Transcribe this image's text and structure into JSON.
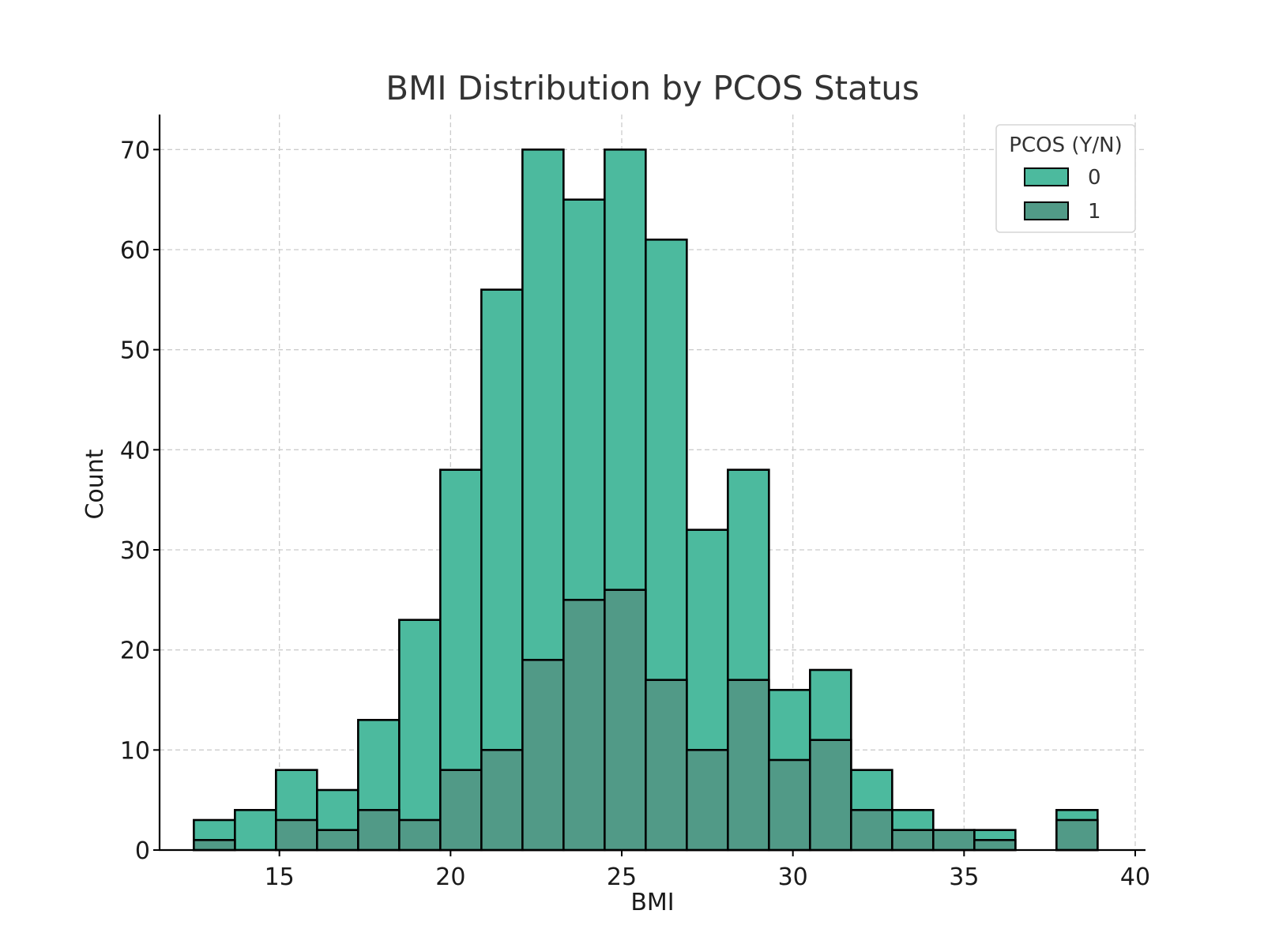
{
  "chart_data": {
    "type": "bar",
    "subtype": "overlaid-histogram",
    "title": "BMI Distribution by PCOS Status",
    "xlabel": "BMI",
    "ylabel": "Count",
    "xlim": [
      11.5,
      40.3
    ],
    "ylim": [
      0,
      73.5
    ],
    "xticks": [
      15,
      20,
      25,
      30,
      35,
      40
    ],
    "yticks": [
      0,
      10,
      20,
      30,
      40,
      50,
      60,
      70
    ],
    "grid": true,
    "bin_start": 12.5,
    "bin_width": 1.2,
    "legend": {
      "title": "PCOS (Y/N)",
      "placement": "top-right"
    },
    "series": [
      {
        "name": "0",
        "color": "#4cba9e",
        "values": [
          3,
          4,
          8,
          6,
          13,
          23,
          38,
          56,
          70,
          65,
          70,
          61,
          32,
          38,
          16,
          18,
          8,
          4,
          2,
          2,
          0,
          4
        ]
      },
      {
        "name": "1",
        "color": "#519a87",
        "values": [
          1,
          0,
          3,
          2,
          4,
          3,
          8,
          10,
          19,
          25,
          26,
          17,
          10,
          17,
          9,
          11,
          4,
          2,
          2,
          1,
          0,
          3
        ]
      }
    ]
  }
}
